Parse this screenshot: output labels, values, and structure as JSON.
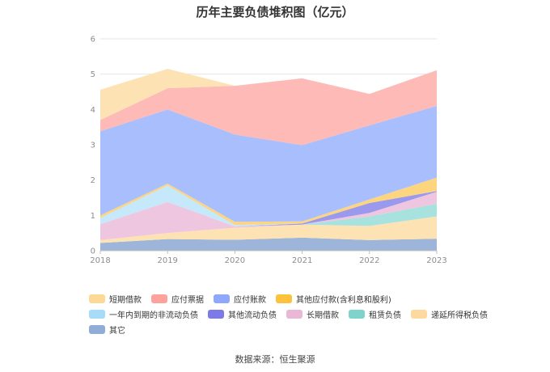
{
  "chart_data": {
    "type": "area",
    "stacked": true,
    "title": "历年主要负债堆积图（亿元）",
    "x": [
      "2018",
      "2019",
      "2020",
      "2021",
      "2022",
      "2023"
    ],
    "ylim": [
      0,
      6
    ],
    "yticks": [
      0,
      1,
      2,
      3,
      4,
      5,
      6
    ],
    "grid": true,
    "legend_position": "bottom",
    "series": [
      {
        "name": "其它",
        "color": "#9db5d8",
        "values": [
          0.22,
          0.33,
          0.31,
          0.37,
          0.3,
          0.34
        ]
      },
      {
        "name": "递延所得税负债",
        "color": "#fde3b4",
        "values": [
          0.08,
          0.17,
          0.34,
          0.37,
          0.4,
          0.63
        ]
      },
      {
        "name": "租赁负债",
        "color": "#a8e2de",
        "values": [
          0.0,
          0.0,
          0.0,
          0.0,
          0.27,
          0.36
        ]
      },
      {
        "name": "长期借款",
        "color": "#efc6df",
        "values": [
          0.45,
          0.88,
          0.04,
          0.0,
          0.1,
          0.34
        ]
      },
      {
        "name": "其他流动负债",
        "color": "#9a99ed",
        "values": [
          0.0,
          0.0,
          0.0,
          0.03,
          0.28,
          0.02
        ]
      },
      {
        "name": "一年内到期的非流动负债",
        "color": "#c5e8fa",
        "values": [
          0.18,
          0.47,
          0.04,
          0.0,
          0.0,
          0.0
        ]
      },
      {
        "name": "其他应付款(含利息和股利)",
        "color": "#fcd57e",
        "values": [
          0.07,
          0.05,
          0.09,
          0.06,
          0.1,
          0.38
        ]
      },
      {
        "name": "应付账款",
        "color": "#a9bffd",
        "values": [
          2.38,
          2.1,
          2.47,
          2.16,
          2.1,
          2.03
        ]
      },
      {
        "name": "应付票据",
        "color": "#fdbab6",
        "values": [
          0.32,
          0.6,
          1.38,
          1.89,
          0.89,
          1.01
        ]
      },
      {
        "name": "短期借款",
        "color": "#fde3b4",
        "values": [
          0.86,
          0.55,
          0.0,
          0.0,
          0.0,
          0.0
        ]
      }
    ]
  },
  "legend_rows": [
    [
      "短期借款",
      "应付票据",
      "应付账款",
      "其他应付款(含利息和股利)"
    ],
    [
      "一年内到期的非流动负债",
      "其他流动负债",
      "长期借款",
      "租赁负债",
      "递延所得税负债"
    ],
    [
      "其它"
    ]
  ],
  "legend_colors": {
    "短期借款": "#fdd996",
    "应付票据": "#fda39c",
    "应付账款": "#8fa8fb",
    "其他应付款(含利息和股利)": "#fcc23c",
    "一年内到期的非流动负债": "#a6dcf7",
    "其他流动负债": "#7b7ae6",
    "长期借款": "#e8b8d6",
    "租赁负债": "#7fd3cd",
    "递延所得税负债": "#fdd9a0",
    "其它": "#8fadd6"
  },
  "source": "数据来源：恒生聚源"
}
